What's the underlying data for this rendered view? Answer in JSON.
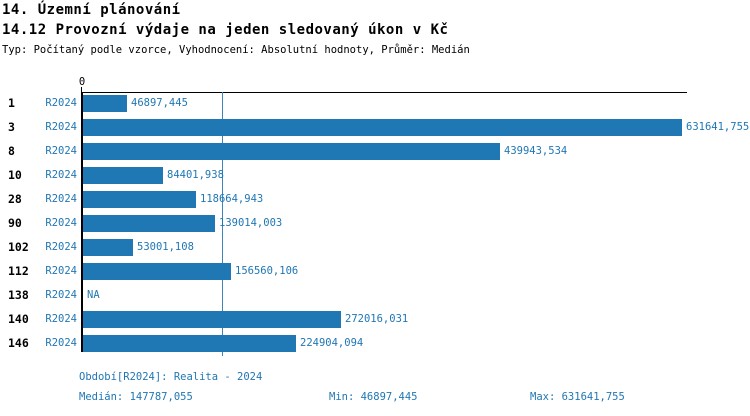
{
  "title": "14. Územní plánování",
  "subtitle": "14.12 Provozní výdaje na jeden sledovaný úkon v Kč",
  "meta": "Typ: Počítaný podle vzorce, Vyhodnocení: Absolutní hodnoty, Průměr: Medián",
  "colors": {
    "bar": "#1f77b4",
    "accent_text": "#2077b4",
    "axis": "#000000",
    "median_line": "#3d85bd"
  },
  "chart_data": {
    "type": "bar",
    "orientation": "horizontal",
    "series_label": "R2024",
    "categories": [
      "1",
      "3",
      "8",
      "10",
      "28",
      "90",
      "102",
      "112",
      "138",
      "140",
      "146"
    ],
    "values": [
      46897.445,
      631641.755,
      439943.534,
      84401.938,
      118664.943,
      139014.003,
      53001.108,
      156560.106,
      null,
      272016.031,
      224904.094
    ],
    "value_labels": [
      "46897,445",
      "631641,755",
      "439943,534",
      "84401,938",
      "118664,943",
      "139014,003",
      "53001,108",
      "156560,106",
      "NA",
      "272016,031",
      "224904,094"
    ],
    "x_tick_labels": [
      "0"
    ],
    "xmin": 0,
    "xmax": 631641.755,
    "median_line_value": 147787.055,
    "grid": false,
    "legend": false
  },
  "footer": {
    "period": "Období[R2024]: Realita - 2024",
    "median": "Medián: 147787,055",
    "min": "Min: 46897,445",
    "max": "Max: 631641,755"
  }
}
